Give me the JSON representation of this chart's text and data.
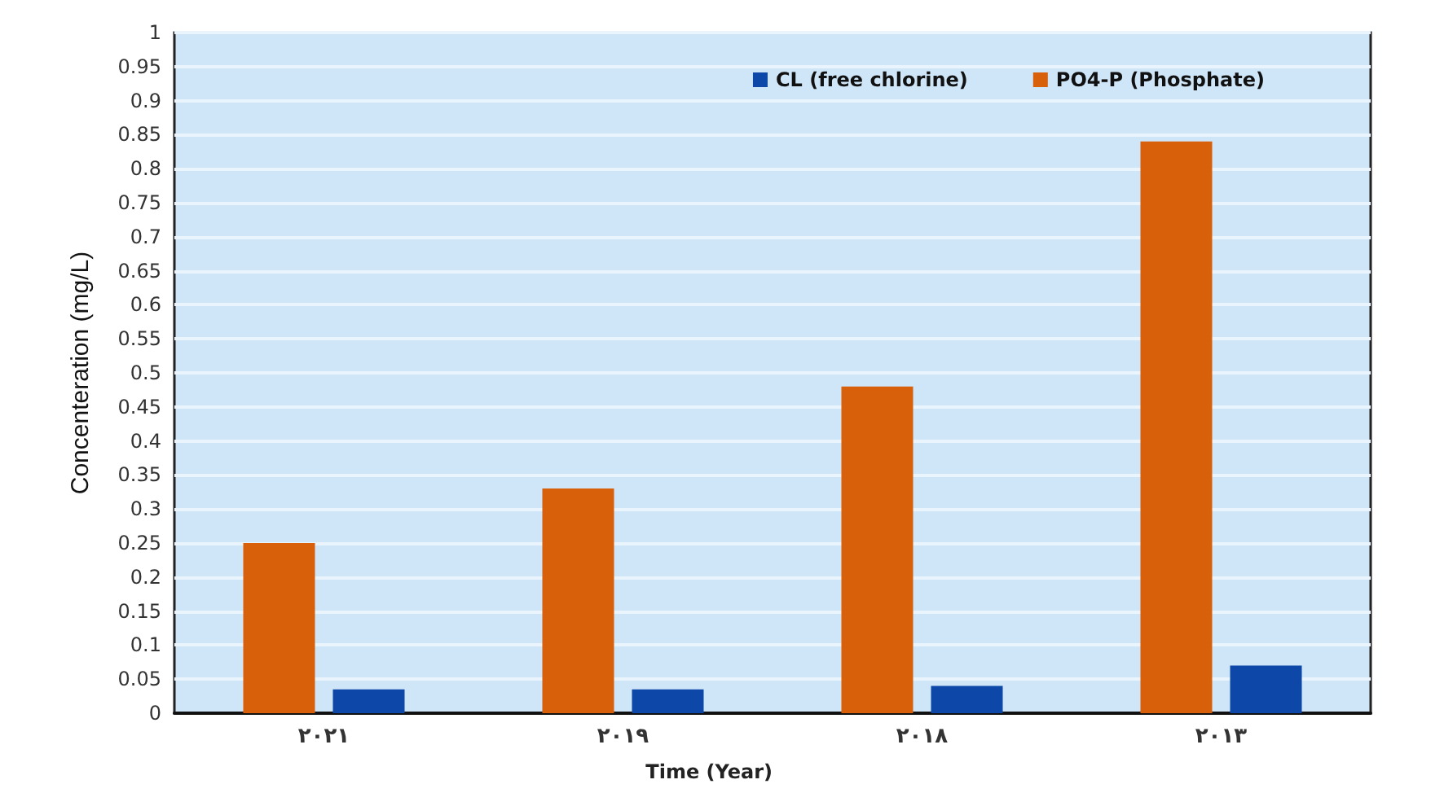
{
  "chart_data": {
    "type": "bar",
    "xlabel": "Time (Year)",
    "ylabel": "Concenteration (mg/L)",
    "categories": [
      "٢٠٢١",
      "٢٠١٩",
      "٢٠١٨",
      "٢٠١٣"
    ],
    "series": [
      {
        "name": "CL (free chlorine)",
        "color": "#0d47a8",
        "values": [
          0.035,
          0.035,
          0.04,
          0.07
        ]
      },
      {
        "name": "PO4-P (Phosphate)",
        "color": "#d9600a",
        "values": [
          0.25,
          0.33,
          0.48,
          0.84
        ]
      }
    ],
    "ylim": [
      0,
      1
    ],
    "yticks": [
      0,
      0.05,
      0.1,
      0.15,
      0.2,
      0.25,
      0.3,
      0.35,
      0.4,
      0.45,
      0.5,
      0.55,
      0.6,
      0.65,
      0.7,
      0.75,
      0.8,
      0.85,
      0.9,
      0.95,
      1
    ],
    "grid": "y",
    "legend": "top right"
  }
}
